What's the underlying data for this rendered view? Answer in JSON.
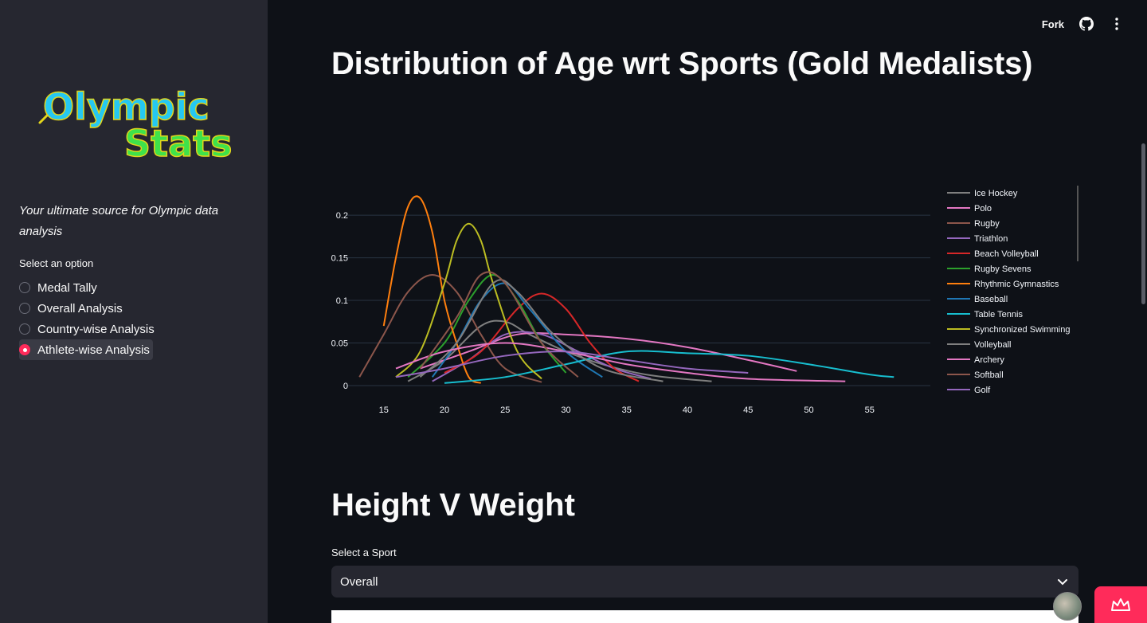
{
  "sidebar": {
    "logo_line1": "Olympic",
    "logo_line2": "Stats",
    "tagline": "Your ultimate source for Olympic data analysis",
    "select_label": "Select an option",
    "options": [
      {
        "label": "Medal Tally",
        "selected": false
      },
      {
        "label": "Overall Analysis",
        "selected": false
      },
      {
        "label": "Country-wise Analysis",
        "selected": false
      },
      {
        "label": "Athlete-wise Analysis",
        "selected": true
      }
    ]
  },
  "header": {
    "fork_label": "Fork",
    "icons": [
      "github-icon",
      "more-vertical-icon"
    ]
  },
  "main": {
    "title": "Distribution of Age wrt Sports (Gold Medalists)",
    "section2_title": "Height V Weight",
    "sport_select_label": "Select a Sport",
    "sport_select_value": "Overall"
  },
  "colors": {
    "accent": "#ff2b5a",
    "background": "#0e1117",
    "sidebar": "#262730"
  },
  "chart_data": {
    "type": "line",
    "title": "",
    "xlabel": "",
    "ylabel": "",
    "xlim": [
      12,
      60
    ],
    "ylim": [
      0,
      0.23
    ],
    "x_ticks": [
      15,
      20,
      25,
      30,
      35,
      40,
      45,
      50,
      55
    ],
    "y_ticks": [
      0,
      0.05,
      0.1,
      0.15,
      0.2
    ],
    "y_tick_labels": [
      "0",
      "0.05",
      "0.1",
      "0.15",
      "0.2"
    ],
    "grid": true,
    "legend_placement": "right",
    "series": [
      {
        "name": "Ice Hockey",
        "color": "#7f7f7f",
        "points": [
          [
            17,
            0.005
          ],
          [
            20,
            0.03
          ],
          [
            23,
            0.07
          ],
          [
            25,
            0.075
          ],
          [
            27,
            0.06
          ],
          [
            30,
            0.04
          ],
          [
            33,
            0.025
          ],
          [
            37,
            0.012
          ],
          [
            42,
            0.005
          ]
        ]
      },
      {
        "name": "Polo",
        "color": "#e377c2",
        "points": [
          [
            18,
            0.02
          ],
          [
            22,
            0.04
          ],
          [
            26,
            0.06
          ],
          [
            30,
            0.06
          ],
          [
            35,
            0.055
          ],
          [
            40,
            0.045
          ],
          [
            45,
            0.03
          ],
          [
            49,
            0.017
          ]
        ]
      },
      {
        "name": "Rugby",
        "color": "#8c564b",
        "points": [
          [
            13,
            0.01
          ],
          [
            15,
            0.06
          ],
          [
            17,
            0.11
          ],
          [
            19,
            0.13
          ],
          [
            21,
            0.11
          ],
          [
            23,
            0.06
          ],
          [
            25,
            0.02
          ],
          [
            28,
            0.004
          ]
        ]
      },
      {
        "name": "Triathlon",
        "color": "#9467bd",
        "points": [
          [
            19,
            0.005
          ],
          [
            22,
            0.03
          ],
          [
            25,
            0.06
          ],
          [
            28,
            0.06
          ],
          [
            31,
            0.04
          ],
          [
            34,
            0.02
          ],
          [
            37,
            0.008
          ]
        ]
      },
      {
        "name": "Beach Volleyball",
        "color": "#d62728",
        "points": [
          [
            20,
            0.015
          ],
          [
            23,
            0.04
          ],
          [
            26,
            0.09
          ],
          [
            28,
            0.108
          ],
          [
            30,
            0.09
          ],
          [
            32,
            0.05
          ],
          [
            34,
            0.02
          ],
          [
            36,
            0.005
          ]
        ]
      },
      {
        "name": "Rugby Sevens",
        "color": "#2ca02c",
        "points": [
          [
            17,
            0.01
          ],
          [
            20,
            0.05
          ],
          [
            22,
            0.1
          ],
          [
            24,
            0.13
          ],
          [
            26,
            0.1
          ],
          [
            28,
            0.05
          ],
          [
            30,
            0.015
          ]
        ]
      },
      {
        "name": "Rhythmic Gymnastics",
        "color": "#ff7f0e",
        "points": [
          [
            15,
            0.07
          ],
          [
            16,
            0.15
          ],
          [
            17,
            0.21
          ],
          [
            18,
            0.22
          ],
          [
            19,
            0.18
          ],
          [
            20,
            0.1
          ],
          [
            21,
            0.05
          ],
          [
            22,
            0.01
          ],
          [
            23,
            0.003
          ]
        ]
      },
      {
        "name": "Baseball",
        "color": "#1f77b4",
        "points": [
          [
            19,
            0.01
          ],
          [
            21,
            0.05
          ],
          [
            23,
            0.1
          ],
          [
            25,
            0.12
          ],
          [
            27,
            0.09
          ],
          [
            30,
            0.04
          ],
          [
            33,
            0.01
          ]
        ]
      },
      {
        "name": "Table Tennis",
        "color": "#17becf",
        "points": [
          [
            20,
            0.003
          ],
          [
            25,
            0.01
          ],
          [
            30,
            0.025
          ],
          [
            35,
            0.04
          ],
          [
            40,
            0.038
          ],
          [
            45,
            0.035
          ],
          [
            50,
            0.025
          ],
          [
            55,
            0.013
          ],
          [
            57,
            0.01
          ]
        ]
      },
      {
        "name": "Synchronized Swimming",
        "color": "#bcbd22",
        "points": [
          [
            16,
            0.01
          ],
          [
            18,
            0.04
          ],
          [
            20,
            0.12
          ],
          [
            21,
            0.17
          ],
          [
            22,
            0.19
          ],
          [
            23,
            0.17
          ],
          [
            24,
            0.12
          ],
          [
            26,
            0.04
          ],
          [
            28,
            0.008
          ]
        ]
      },
      {
        "name": "Volleyball",
        "color": "#7f7f7f",
        "points": [
          [
            18,
            0.01
          ],
          [
            21,
            0.05
          ],
          [
            24,
            0.12
          ],
          [
            26,
            0.11
          ],
          [
            29,
            0.06
          ],
          [
            33,
            0.02
          ],
          [
            38,
            0.005
          ]
        ]
      },
      {
        "name": "Archery",
        "color": "#e377c2",
        "points": [
          [
            16,
            0.02
          ],
          [
            20,
            0.04
          ],
          [
            25,
            0.05
          ],
          [
            30,
            0.04
          ],
          [
            35,
            0.025
          ],
          [
            40,
            0.015
          ],
          [
            45,
            0.008
          ],
          [
            53,
            0.005
          ]
        ]
      },
      {
        "name": "Softball",
        "color": "#8c564b",
        "points": [
          [
            18,
            0.02
          ],
          [
            21,
            0.08
          ],
          [
            23,
            0.13
          ],
          [
            25,
            0.12
          ],
          [
            28,
            0.05
          ],
          [
            31,
            0.01
          ]
        ]
      },
      {
        "name": "Golf",
        "color": "#9467bd",
        "points": [
          [
            16,
            0.01
          ],
          [
            20,
            0.02
          ],
          [
            25,
            0.035
          ],
          [
            30,
            0.04
          ],
          [
            35,
            0.03
          ],
          [
            40,
            0.02
          ],
          [
            45,
            0.015
          ]
        ]
      }
    ]
  }
}
